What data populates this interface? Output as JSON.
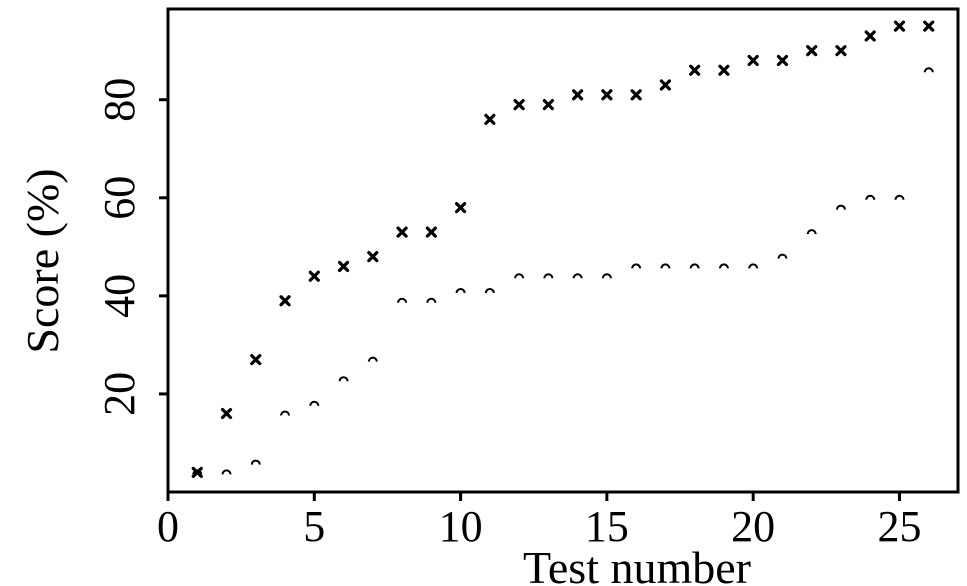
{
  "chart_data": {
    "type": "scatter",
    "xlabel": "Test number",
    "ylabel": "Score (%)",
    "xlim": [
      0,
      27
    ],
    "ylim": [
      0,
      98.5
    ],
    "xticks": [
      0,
      5,
      10,
      15,
      20,
      25
    ],
    "yticks": [
      20,
      40,
      60,
      80
    ],
    "grid": false,
    "legend": "none",
    "series": [
      {
        "marker": "x",
        "color": "#000000",
        "points": [
          [
            1,
            4
          ],
          [
            2,
            16
          ],
          [
            3,
            27
          ],
          [
            4,
            39
          ],
          [
            5,
            44
          ],
          [
            6,
            46
          ],
          [
            7,
            48
          ],
          [
            8,
            53
          ],
          [
            9,
            53
          ],
          [
            10,
            58
          ],
          [
            11,
            76
          ],
          [
            12,
            79
          ],
          [
            13,
            79
          ],
          [
            14,
            81
          ],
          [
            15,
            81
          ],
          [
            16,
            81
          ],
          [
            17,
            83
          ],
          [
            18,
            86
          ],
          [
            19,
            86
          ],
          [
            20,
            88
          ],
          [
            21,
            88
          ],
          [
            22,
            90
          ],
          [
            23,
            90
          ],
          [
            24,
            93
          ],
          [
            25,
            95
          ],
          [
            26,
            95
          ]
        ]
      },
      {
        "marker": "arc",
        "color": "#000000",
        "points": [
          [
            1,
            4
          ],
          [
            2,
            4
          ],
          [
            3,
            6
          ],
          [
            4,
            16
          ],
          [
            5,
            18
          ],
          [
            6,
            23
          ],
          [
            7,
            27
          ],
          [
            8,
            39
          ],
          [
            9,
            39
          ],
          [
            10,
            41
          ],
          [
            11,
            41
          ],
          [
            12,
            44
          ],
          [
            13,
            44
          ],
          [
            14,
            44
          ],
          [
            15,
            44
          ],
          [
            16,
            46
          ],
          [
            17,
            46
          ],
          [
            18,
            46
          ],
          [
            19,
            46
          ],
          [
            20,
            46
          ],
          [
            21,
            48
          ],
          [
            22,
            53
          ],
          [
            23,
            58
          ],
          [
            24,
            60
          ],
          [
            25,
            60
          ],
          [
            26,
            86
          ]
        ]
      }
    ]
  }
}
